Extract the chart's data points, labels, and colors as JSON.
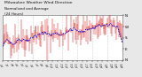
{
  "title": "Milwaukee Weather Wind Direction",
  "subtitle": "Normalized and Average",
  "subtitle2": "(24 Hours)",
  "ylim": [
    0,
    360
  ],
  "yticks": [
    0,
    90,
    180,
    270,
    360
  ],
  "ytick_labels": [
    "N",
    "E",
    "S",
    "W",
    "N"
  ],
  "background_color": "#e8e8e8",
  "plot_bg": "#ffffff",
  "bar_color": "#dd0000",
  "line_color": "#0000cc",
  "n_points": 200,
  "seed": 42,
  "title_fontsize": 3.2,
  "tick_fontsize": 3.0,
  "grid_color": "#aaaaaa",
  "grid_linestyle": ":"
}
